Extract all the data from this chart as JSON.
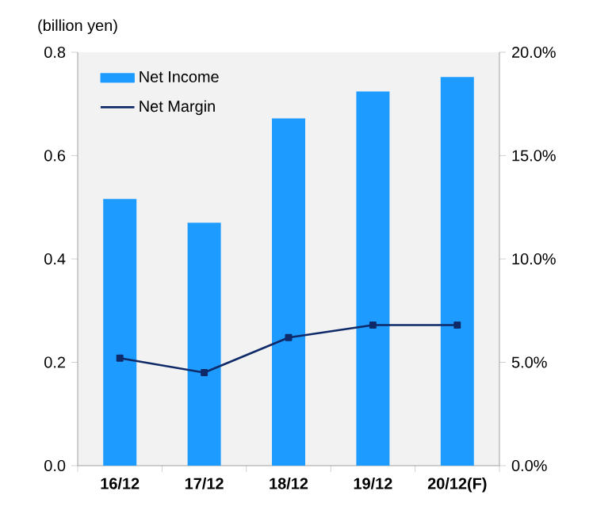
{
  "chart_data": {
    "type": "bar",
    "ylabel": "(billion yen)",
    "categories": [
      "16/12",
      "17/12",
      "18/12",
      "19/12",
      "20/12(F)"
    ],
    "series": [
      {
        "name": "Net Income",
        "color": "#1e9bff",
        "values": [
          0.516,
          0.47,
          0.672,
          0.724,
          0.752
        ]
      },
      {
        "name": "Net Margin",
        "type": "line",
        "axis": "y2",
        "color": "#0f2a68",
        "marker": "square",
        "values": [
          5.2,
          4.5,
          6.2,
          6.8,
          6.8
        ]
      }
    ],
    "ylim": [
      0,
      0.8
    ],
    "yticks": [
      {
        "value": 0,
        "label": "0.0"
      },
      {
        "value": 0.2,
        "label": "0.2"
      },
      {
        "value": 0.4,
        "label": "0.4"
      },
      {
        "value": 0.6,
        "label": "0.6"
      },
      {
        "value": 0.8,
        "label": "0.8"
      }
    ],
    "y2lim": [
      0,
      20
    ],
    "y2ticks": [
      {
        "value": 0,
        "label": "0.0%"
      },
      {
        "value": 5,
        "label": "5.0%"
      },
      {
        "value": 10,
        "label": "10.0%"
      },
      {
        "value": 15,
        "label": "15.0%"
      },
      {
        "value": 20,
        "label": "20.0%"
      }
    ],
    "legend": "top left",
    "grid": false
  }
}
